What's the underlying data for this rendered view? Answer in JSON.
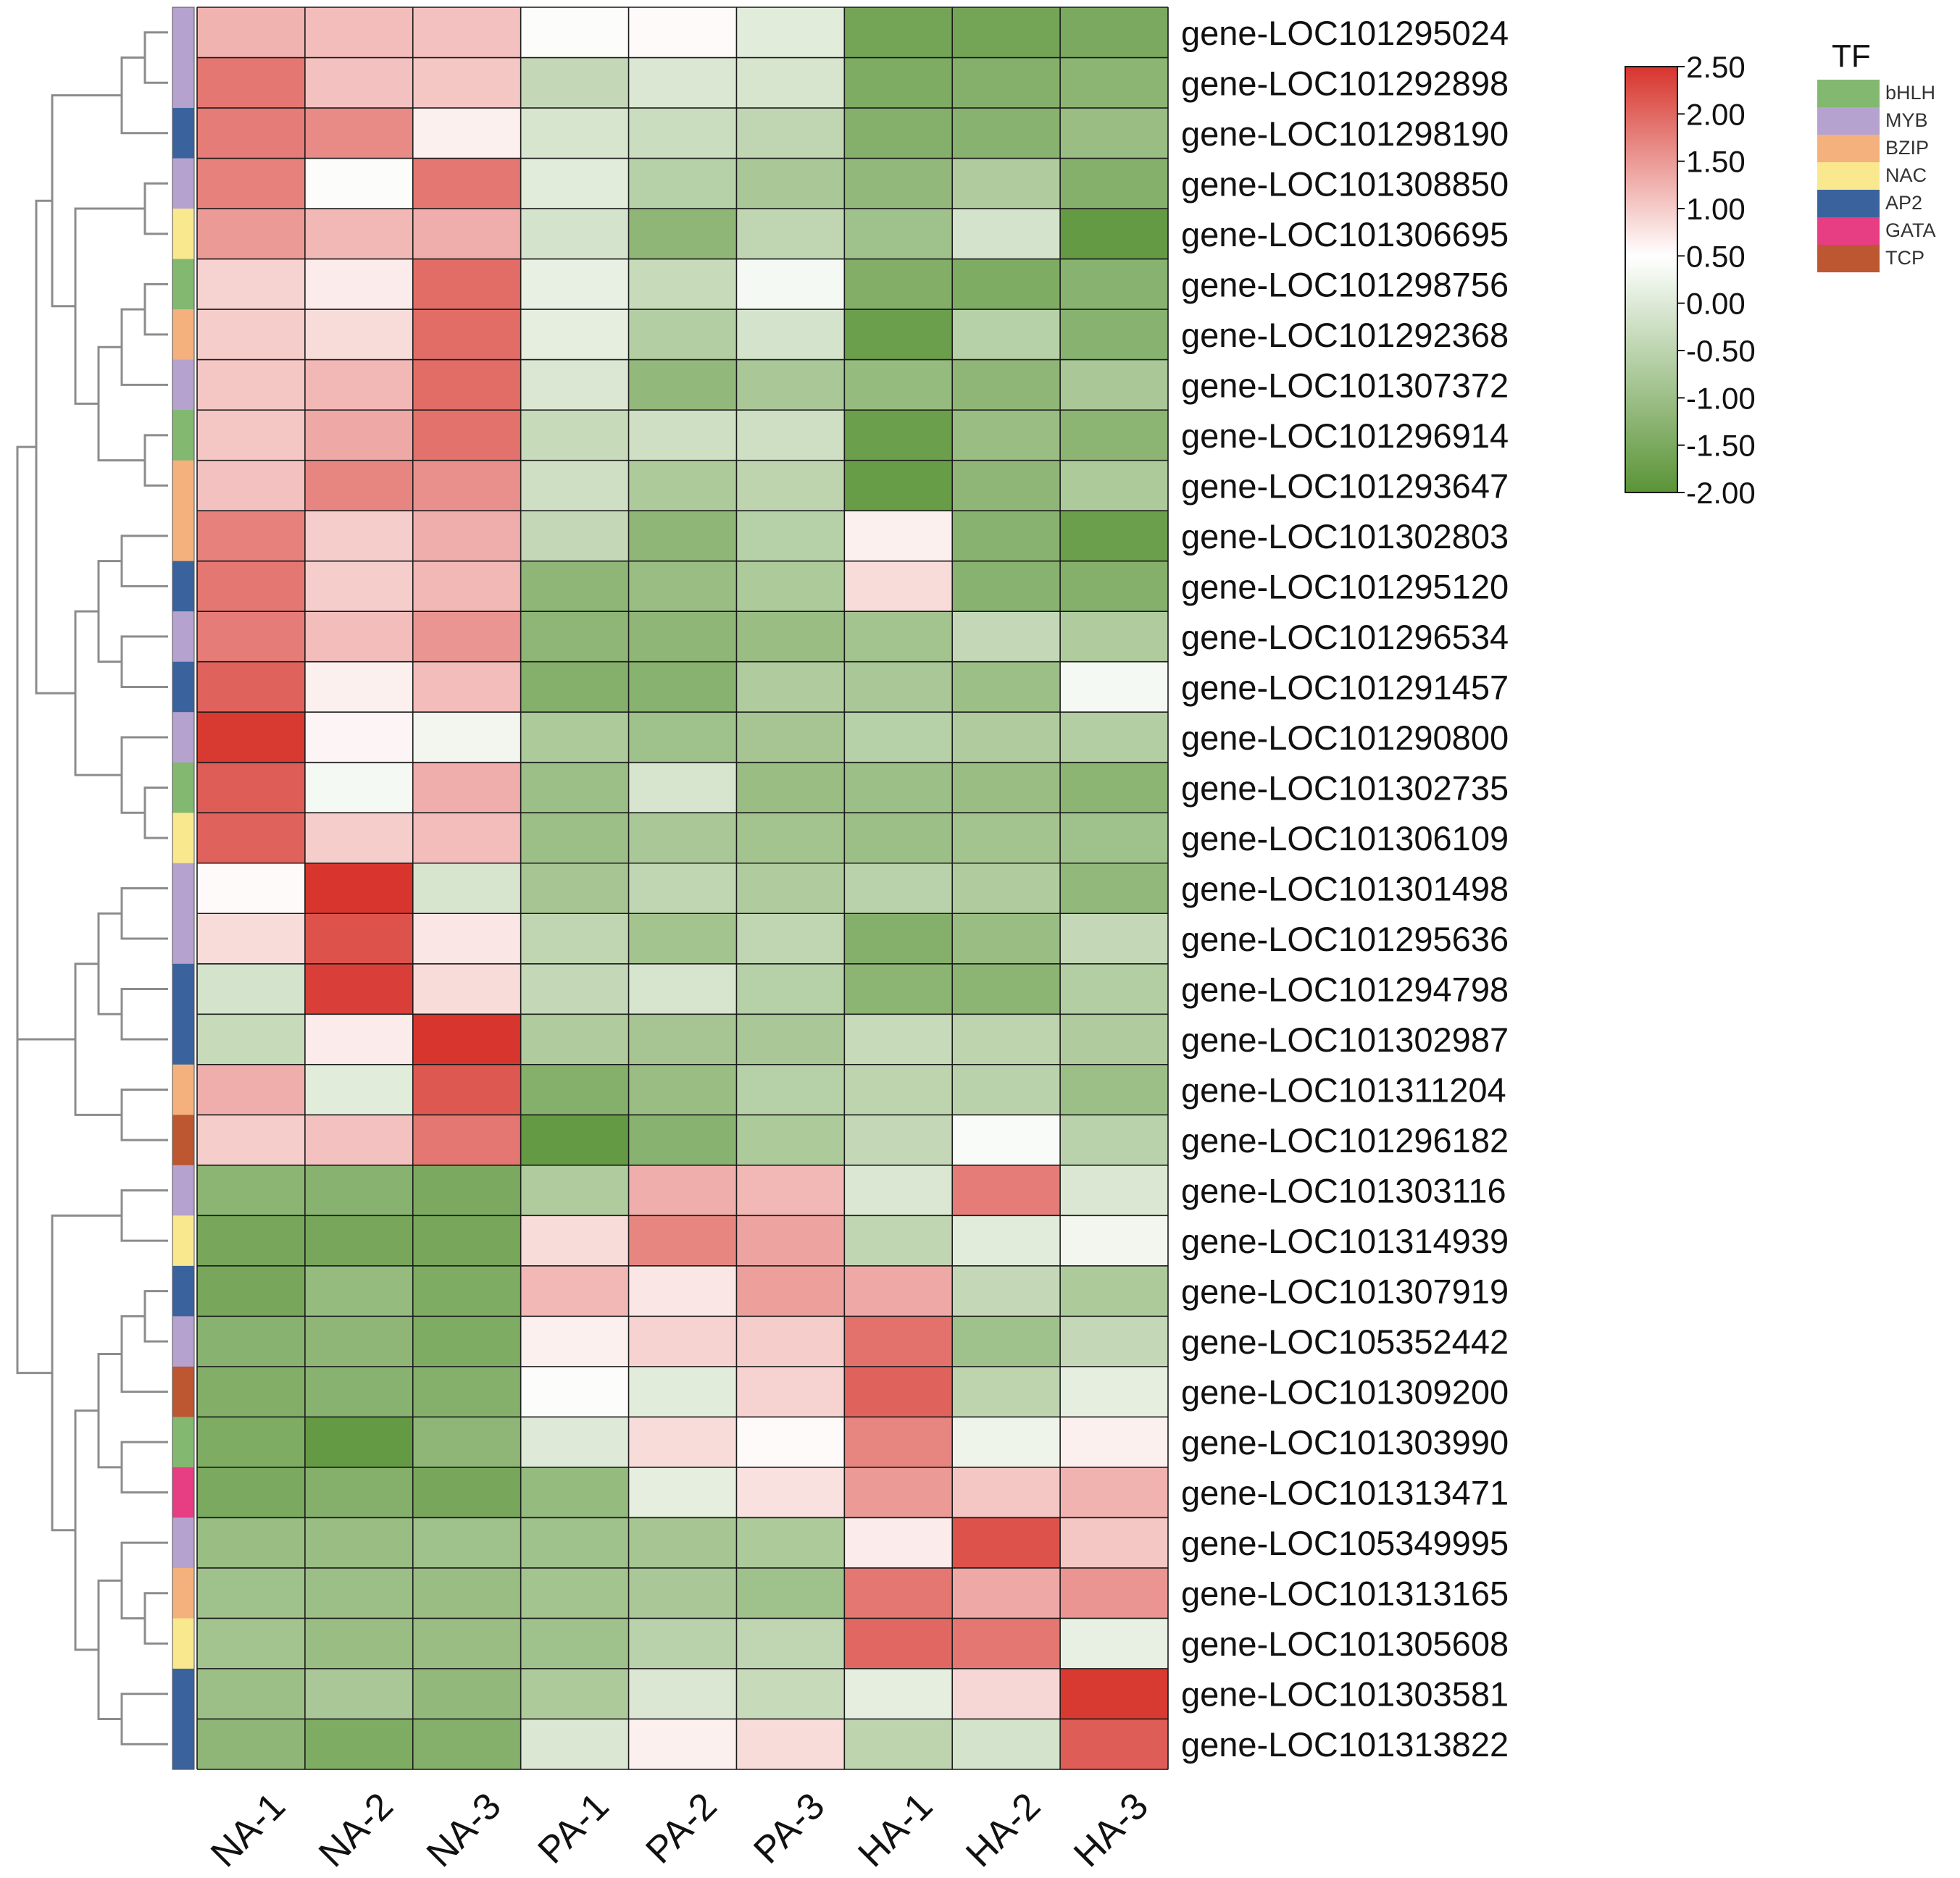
{
  "chart_data": {
    "type": "heatmap",
    "title": "",
    "columns": [
      "NA-1",
      "NA-2",
      "NA-3",
      "PA-1",
      "PA-2",
      "PA-3",
      "HA-1",
      "HA-2",
      "HA-3"
    ],
    "rows": [
      {
        "gene": "gene-LOC101295024",
        "tf": "MYB",
        "values": [
          1.25,
          1.15,
          1.1,
          0.45,
          0.55,
          0.05,
          -1.6,
          -1.6,
          -1.5
        ]
      },
      {
        "gene": "gene-LOC101292898",
        "tf": "MYB",
        "values": [
          1.85,
          1.1,
          1.05,
          -0.4,
          -0.05,
          -0.1,
          -1.45,
          -1.35,
          -1.25
        ]
      },
      {
        "gene": "gene-LOC101298190",
        "tf": "AP2",
        "values": [
          1.8,
          1.65,
          0.65,
          -0.1,
          -0.3,
          -0.45,
          -1.35,
          -1.3,
          -1.05
        ]
      },
      {
        "gene": "gene-LOC101308850",
        "tf": "MYB",
        "values": [
          1.75,
          0.45,
          1.85,
          0.05,
          -0.6,
          -0.8,
          -1.15,
          -0.7,
          -1.35
        ]
      },
      {
        "gene": "gene-LOC101306695",
        "tf": "NAC",
        "values": [
          1.5,
          1.2,
          1.3,
          -0.15,
          -1.2,
          -0.45,
          -0.95,
          -0.15,
          -1.85
        ]
      },
      {
        "gene": "gene-LOC101298756",
        "tf": "bHLH",
        "values": [
          0.95,
          0.7,
          1.95,
          0.15,
          -0.35,
          0.35,
          -1.4,
          -1.45,
          -1.3
        ]
      },
      {
        "gene": "gene-LOC101292368",
        "tf": "BZIP",
        "values": [
          1.0,
          0.85,
          1.95,
          0.1,
          -0.65,
          -0.15,
          -1.75,
          -0.6,
          -1.3
        ]
      },
      {
        "gene": "gene-LOC101307372",
        "tf": "MYB",
        "values": [
          1.05,
          1.2,
          1.95,
          -0.05,
          -1.15,
          -0.8,
          -1.1,
          -1.2,
          -0.8
        ]
      },
      {
        "gene": "gene-LOC101296914",
        "tf": "bHLH",
        "values": [
          1.05,
          1.35,
          1.9,
          -0.35,
          -0.25,
          -0.25,
          -1.75,
          -1.05,
          -1.25
        ]
      },
      {
        "gene": "gene-LOC101293647",
        "tf": "BZIP",
        "values": [
          1.1,
          1.7,
          1.6,
          -0.25,
          -0.75,
          -0.5,
          -1.8,
          -1.2,
          -0.75
        ]
      },
      {
        "gene": "gene-LOC101302803",
        "tf": "BZIP",
        "values": [
          1.75,
          1.0,
          1.3,
          -0.4,
          -1.2,
          -0.6,
          0.65,
          -1.3,
          -1.75
        ]
      },
      {
        "gene": "gene-LOC101295120",
        "tf": "AP2",
        "values": [
          1.85,
          1.0,
          1.2,
          -1.2,
          -1.05,
          -0.75,
          0.85,
          -1.3,
          -1.35
        ]
      },
      {
        "gene": "gene-LOC101296534",
        "tf": "MYB",
        "values": [
          1.8,
          1.15,
          1.55,
          -1.2,
          -1.2,
          -1.05,
          -0.9,
          -0.4,
          -0.7
        ]
      },
      {
        "gene": "gene-LOC101291457",
        "tf": "AP2",
        "values": [
          2.05,
          0.65,
          1.15,
          -1.35,
          -1.3,
          -0.7,
          -0.8,
          -1.0,
          0.35
        ]
      },
      {
        "gene": "gene-LOC101290800",
        "tf": "MYB",
        "values": [
          2.45,
          0.6,
          0.3,
          -0.75,
          -0.95,
          -0.85,
          -0.6,
          -0.7,
          -0.65
        ]
      },
      {
        "gene": "gene-LOC101302735",
        "tf": "bHLH",
        "values": [
          2.1,
          0.35,
          1.3,
          -1.0,
          -0.1,
          -1.05,
          -1.0,
          -1.05,
          -1.25
        ]
      },
      {
        "gene": "gene-LOC101306109",
        "tf": "NAC",
        "values": [
          2.05,
          1.0,
          1.15,
          -1.0,
          -0.8,
          -0.9,
          -1.0,
          -0.9,
          -0.95
        ]
      },
      {
        "gene": "gene-LOC101301498",
        "tf": "MYB",
        "values": [
          0.55,
          2.5,
          -0.1,
          -0.85,
          -0.45,
          -0.7,
          -0.55,
          -0.7,
          -1.15
        ]
      },
      {
        "gene": "gene-LOC101295636",
        "tf": "MYB",
        "values": [
          0.85,
          2.2,
          0.75,
          -0.45,
          -0.9,
          -0.45,
          -1.35,
          -1.05,
          -0.4
        ]
      },
      {
        "gene": "gene-LOC101294798",
        "tf": "AP2",
        "values": [
          -0.15,
          2.4,
          0.85,
          -0.4,
          -0.1,
          -0.6,
          -1.25,
          -1.25,
          -0.65
        ]
      },
      {
        "gene": "gene-LOC101302987",
        "tf": "AP2",
        "values": [
          -0.35,
          0.7,
          2.5,
          -0.7,
          -0.85,
          -0.8,
          -0.35,
          -0.5,
          -0.7
        ]
      },
      {
        "gene": "gene-LOC101311204",
        "tf": "BZIP",
        "values": [
          1.3,
          0.05,
          2.15,
          -1.35,
          -1.05,
          -0.6,
          -0.5,
          -0.55,
          -1.0
        ]
      },
      {
        "gene": "gene-LOC101296182",
        "tf": "TCP",
        "values": [
          1.0,
          1.1,
          1.85,
          -1.85,
          -1.3,
          -0.75,
          -0.4,
          0.4,
          -0.55
        ]
      },
      {
        "gene": "gene-LOC101303116",
        "tf": "MYB",
        "values": [
          -1.25,
          -1.3,
          -1.5,
          -0.7,
          1.3,
          1.2,
          -0.05,
          1.8,
          -0.05
        ]
      },
      {
        "gene": "gene-LOC101314939",
        "tf": "NAC",
        "values": [
          -1.55,
          -1.55,
          -1.55,
          0.85,
          1.7,
          1.4,
          -0.45,
          0.05,
          0.3
        ]
      },
      {
        "gene": "gene-LOC101307919",
        "tf": "AP2",
        "values": [
          -1.55,
          -1.1,
          -1.45,
          1.2,
          0.75,
          1.45,
          1.35,
          -0.4,
          -0.75
        ]
      },
      {
        "gene": "gene-LOC105352442",
        "tf": "MYB",
        "values": [
          -1.3,
          -1.2,
          -1.45,
          0.65,
          0.95,
          1.0,
          1.9,
          -0.95,
          -0.4
        ]
      },
      {
        "gene": "gene-LOC101309200",
        "tf": "TCP",
        "values": [
          -1.4,
          -1.3,
          -1.35,
          0.45,
          0.05,
          0.95,
          2.05,
          -0.5,
          0.1
        ]
      },
      {
        "gene": "gene-LOC101303990",
        "tf": "bHLH",
        "values": [
          -1.45,
          -1.85,
          -1.2,
          0.0,
          0.85,
          0.55,
          1.7,
          0.25,
          0.65
        ]
      },
      {
        "gene": "gene-LOC101313471",
        "tf": "GATA",
        "values": [
          -1.5,
          -1.35,
          -1.55,
          -1.1,
          0.1,
          0.8,
          1.5,
          1.05,
          1.25
        ]
      },
      {
        "gene": "gene-LOC105349995",
        "tf": "MYB",
        "values": [
          -1.05,
          -1.05,
          -0.95,
          -0.95,
          -0.85,
          -0.75,
          0.7,
          2.2,
          1.05
        ]
      },
      {
        "gene": "gene-LOC101313165",
        "tf": "BZIP",
        "values": [
          -0.95,
          -1.0,
          -1.05,
          -0.9,
          -0.8,
          -0.95,
          1.85,
          1.35,
          1.55
        ]
      },
      {
        "gene": "gene-LOC101305608",
        "tf": "NAC",
        "values": [
          -0.9,
          -1.05,
          -1.05,
          -0.95,
          -0.55,
          -0.45,
          2.0,
          1.85,
          0.15
        ]
      },
      {
        "gene": "gene-LOC101303581",
        "tf": "AP2",
        "values": [
          -1.0,
          -0.8,
          -1.15,
          -0.75,
          -0.05,
          -0.35,
          0.1,
          0.9,
          2.45
        ]
      },
      {
        "gene": "gene-LOC101313822",
        "tf": "AP2",
        "values": [
          -1.2,
          -1.45,
          -1.35,
          -0.05,
          0.65,
          0.85,
          -0.5,
          -0.15,
          2.1
        ]
      }
    ],
    "color_scale": {
      "min": -2.0,
      "mid": 0.5,
      "max": 2.5,
      "low_color": "#5a9437",
      "mid_color": "#ffffff",
      "high_color": "#d7352d",
      "ticks": [
        "2.50",
        "2.00",
        "1.50",
        "1.00",
        "0.50",
        "0.00",
        "-0.50",
        "-1.00",
        "-1.50",
        "-2.00"
      ]
    },
    "legend": {
      "title": "TF",
      "items": [
        {
          "name": "bHLH",
          "color": "#82b870"
        },
        {
          "name": "MYB",
          "color": "#b6a2ce"
        },
        {
          "name": "BZIP",
          "color": "#f4b17d"
        },
        {
          "name": "NAC",
          "color": "#f9e88e"
        },
        {
          "name": "AP2",
          "color": "#3a639e"
        },
        {
          "name": "GATA",
          "color": "#e63d83"
        },
        {
          "name": "TCP",
          "color": "#bc5731"
        }
      ]
    }
  }
}
